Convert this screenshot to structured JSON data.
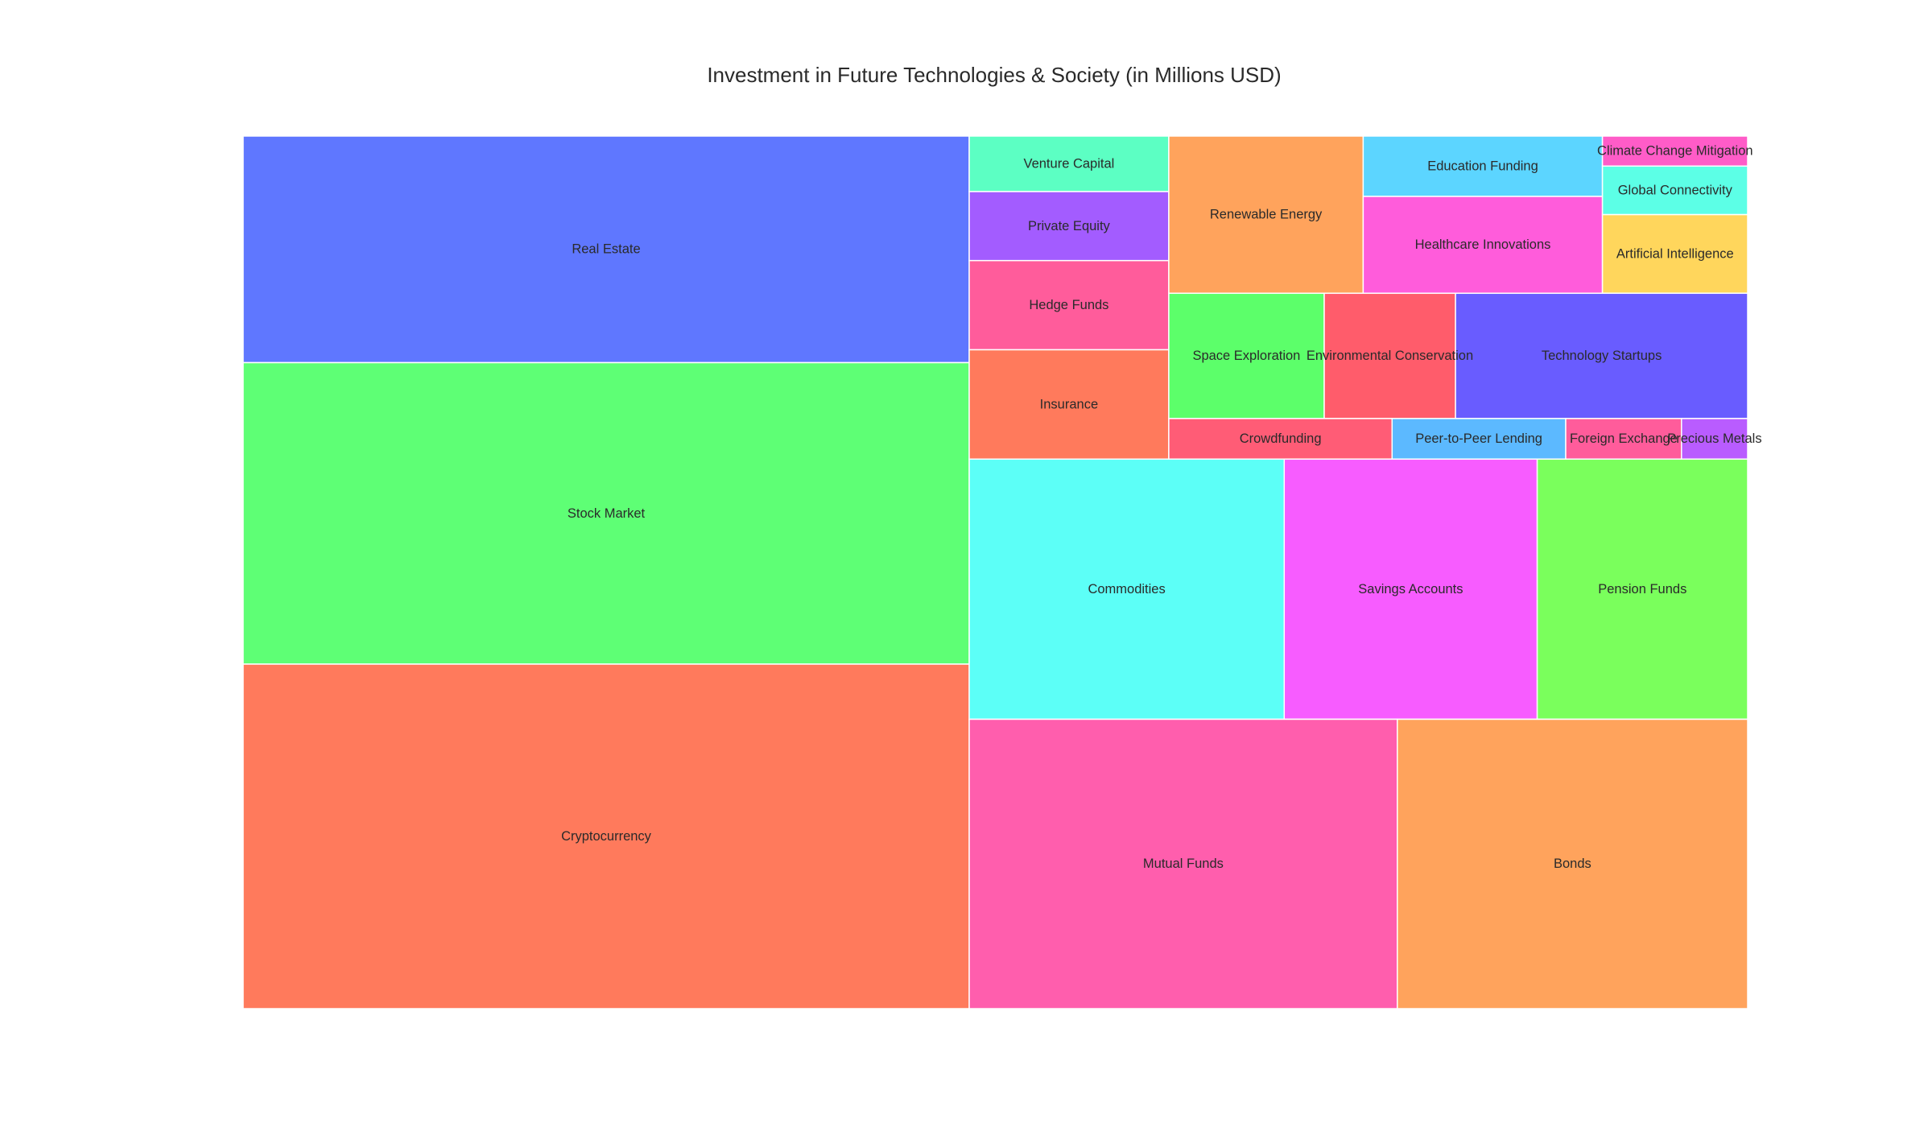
{
  "chart_data": {
    "type": "treemap",
    "title": "Investment in Future Technologies & Society (in Millions USD)",
    "items": [
      {
        "name": "Cryptocurrency",
        "value": 7450,
        "color": "#FF7A5C"
      },
      {
        "name": "Stock Market",
        "value": 6520,
        "color": "#5EFF75"
      },
      {
        "name": "Real Estate",
        "value": 4900,
        "color": "#5F77FF"
      },
      {
        "name": "Mutual Funds",
        "value": 3690,
        "color": "#FF5EAD"
      },
      {
        "name": "Bonds",
        "value": 3020,
        "color": "#FFA35C"
      },
      {
        "name": "Commodities",
        "value": 2440,
        "color": "#5CFFF7"
      },
      {
        "name": "Savings Accounts",
        "value": 1960,
        "color": "#F75CFF"
      },
      {
        "name": "Pension Funds",
        "value": 1630,
        "color": "#7AFF5C"
      },
      {
        "name": "Technology Startups",
        "value": 1090,
        "color": "#695CFF"
      },
      {
        "name": "Renewable Energy",
        "value": 910,
        "color": "#FFA35C"
      },
      {
        "name": "Healthcare Innovations",
        "value": 690,
        "color": "#FF5CDB"
      },
      {
        "name": "Insurance",
        "value": 650,
        "color": "#FF7A5C"
      },
      {
        "name": "Space Exploration",
        "value": 580,
        "color": "#5CFF6A"
      },
      {
        "name": "Hedge Funds",
        "value": 530,
        "color": "#FF5C9B"
      },
      {
        "name": "Environmental Conservation",
        "value": 490,
        "color": "#FF5C6B"
      },
      {
        "name": "Education Funding",
        "value": 430,
        "color": "#5CD5FF"
      },
      {
        "name": "Private Equity",
        "value": 410,
        "color": "#A35CFF"
      },
      {
        "name": "Artificial Intelligence",
        "value": 340,
        "color": "#FFD65C"
      },
      {
        "name": "Venture Capital",
        "value": 330,
        "color": "#5CFFC3"
      },
      {
        "name": "Crowdfunding",
        "value": 270,
        "color": "#FF5C76"
      },
      {
        "name": "Peer-to-Peer Lending",
        "value": 210,
        "color": "#5CB9FF"
      },
      {
        "name": "Global Connectivity",
        "value": 210,
        "color": "#5CFFE6"
      },
      {
        "name": "Foreign Exchange",
        "value": 140,
        "color": "#FF5C9B"
      },
      {
        "name": "Climate Change Mitigation",
        "value": 130,
        "color": "#FF5CC8"
      },
      {
        "name": "Precious Metals",
        "value": 80,
        "color": "#B95CFF"
      }
    ]
  }
}
